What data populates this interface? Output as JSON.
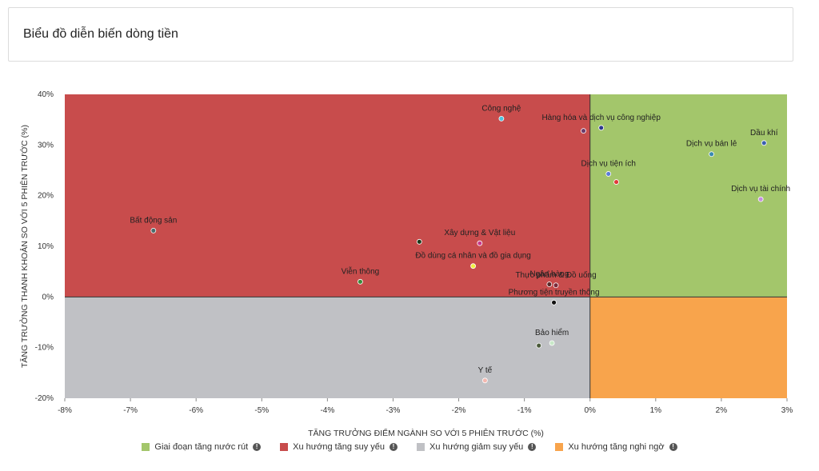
{
  "header": {
    "title": "Biểu đồ diễn biến dòng tiền"
  },
  "chart_data": {
    "type": "scatter",
    "xlabel": "TĂNG TRƯỞNG ĐIỂM NGÀNH SO VỚI 5 PHIÊN TRƯỚC (%)",
    "ylabel": "TĂNG TRƯỞNG THANH KHOẢN SO VỚI 5 PHIÊN TRƯỚC (%)",
    "xlim": [
      -8,
      3
    ],
    "ylim": [
      -20,
      40
    ],
    "xticks": [
      -8,
      -7,
      -6,
      -5,
      -4,
      -3,
      -2,
      -1,
      0,
      1,
      2,
      3
    ],
    "yticks": [
      -20,
      -10,
      0,
      10,
      20,
      30,
      40
    ],
    "xtick_labels": [
      "-8%",
      "-7%",
      "-6%",
      "-5%",
      "-4%",
      "-3%",
      "-2%",
      "-1%",
      "0%",
      "1%",
      "2%",
      "3%"
    ],
    "ytick_labels": [
      "-20%",
      "-10%",
      "0%",
      "10%",
      "20%",
      "30%",
      "40%"
    ],
    "grid": false,
    "quadrants": [
      {
        "name": "Giai đoạn tăng nước rút",
        "color": "#a3c66b",
        "x": "positive",
        "y": "positive"
      },
      {
        "name": "Xu hướng tăng suy yếu",
        "color": "#c84c4c",
        "x": "negative",
        "y": "positive"
      },
      {
        "name": "Xu hướng giảm suy yếu",
        "color": "#c0c1c5",
        "x": "negative",
        "y": "negative"
      },
      {
        "name": "Xu hướng tăng nghi ngờ",
        "color": "#f8a44c",
        "x": "positive",
        "y": "negative"
      }
    ],
    "points": [
      {
        "name": "Công nghệ",
        "x": -1.35,
        "y": 35.2,
        "color": "#4fc3e0"
      },
      {
        "name": "Hàng hóa và dịch vụ công nghiệp",
        "x": 0.17,
        "y": 33.4,
        "color": "#2d3a8c"
      },
      {
        "name": "",
        "x": -0.1,
        "y": 32.8,
        "color": "#6b3a6b"
      },
      {
        "name": "Dầu khí",
        "x": 2.65,
        "y": 30.4,
        "color": "#3a5fb0"
      },
      {
        "name": "Dịch vụ bán lẻ",
        "x": 1.85,
        "y": 28.2,
        "color": "#3a8ab0"
      },
      {
        "name": "Dịch vụ tiện ích",
        "x": 0.28,
        "y": 24.3,
        "color": "#5a7bd8"
      },
      {
        "name": "",
        "x": 0.4,
        "y": 22.7,
        "color": "#e03a3a"
      },
      {
        "name": "Dịch vụ tài chính",
        "x": 2.6,
        "y": 19.3,
        "color": "#c58ee0"
      },
      {
        "name": "Bất động sản",
        "x": -6.65,
        "y": 13.1,
        "color": "#4a6b6b"
      },
      {
        "name": "Xây dựng & Vật liệu",
        "x": -1.68,
        "y": 10.6,
        "color": "#c83a8a"
      },
      {
        "name": "",
        "x": -2.6,
        "y": 10.9,
        "color": "#1a3a1a"
      },
      {
        "name": "Đồ dùng cá nhân và đồ gia dụng",
        "x": -1.78,
        "y": 6.1,
        "color": "#f0f040"
      },
      {
        "name": "Viễn thông",
        "x": -3.5,
        "y": 3.0,
        "color": "#3a8a3a"
      },
      {
        "name": "Ngân hàng",
        "x": -0.62,
        "y": 2.5,
        "color": "#5a2a2a"
      },
      {
        "name": "Thực phẩm & Đồ uống",
        "x": -0.52,
        "y": 2.3,
        "color": "#7a2a3a"
      },
      {
        "name": "Phương tiện truyền thông",
        "x": -0.55,
        "y": -1.1,
        "color": "#111111"
      },
      {
        "name": "Bảo hiểm",
        "x": -0.58,
        "y": -9.1,
        "color": "#c8e8c8"
      },
      {
        "name": "",
        "x": -0.78,
        "y": -9.6,
        "color": "#4a5a3a"
      },
      {
        "name": "Y tế",
        "x": -1.6,
        "y": -16.5,
        "color": "#f4b8b0"
      }
    ]
  },
  "legend": {
    "items": [
      {
        "label": "Giai đoạn tăng nước rút",
        "color": "#a3c66b"
      },
      {
        "label": "Xu hướng tăng suy yếu",
        "color": "#c84c4c"
      },
      {
        "label": "Xu hướng giảm suy yếu",
        "color": "#c0c1c5"
      },
      {
        "label": "Xu hướng tăng nghi ngờ",
        "color": "#f8a44c"
      }
    ]
  }
}
